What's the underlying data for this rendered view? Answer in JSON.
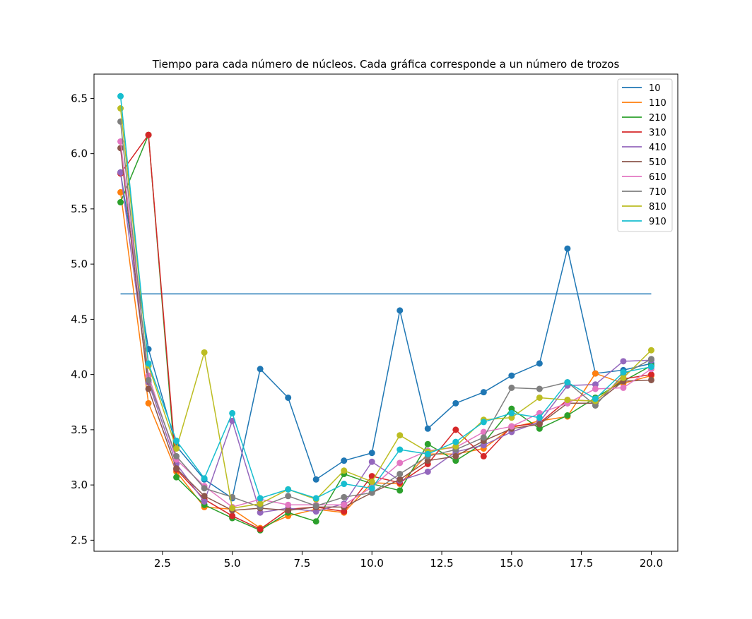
{
  "chart_data": {
    "type": "line",
    "title": "Tiempo para cada número de núcleos. Cada gráfica corresponde a un número de trozos",
    "xlabel": "",
    "ylabel": "",
    "xlim": [
      0.05,
      20.95
    ],
    "ylim": [
      2.4,
      6.72
    ],
    "xticks": [
      2.5,
      5.0,
      7.5,
      10.0,
      12.5,
      15.0,
      17.5,
      20.0
    ],
    "xtick_labels": [
      "2.5",
      "5.0",
      "7.5",
      "10.0",
      "12.5",
      "15.0",
      "17.5",
      "20.0"
    ],
    "yticks": [
      2.5,
      3.0,
      3.5,
      4.0,
      4.5,
      5.0,
      5.5,
      6.0,
      6.5
    ],
    "ytick_labels": [
      "2.5",
      "3.0",
      "3.5",
      "4.0",
      "4.5",
      "5.0",
      "5.5",
      "6.0",
      "6.5"
    ],
    "grid": false,
    "legend_position": "top-right",
    "x": [
      1,
      2,
      3,
      4,
      5,
      6,
      7,
      8,
      9,
      10,
      11,
      12,
      13,
      14,
      15,
      16,
      17,
      18,
      19,
      20
    ],
    "reference_line": {
      "series": "10",
      "y": 4.73,
      "x_range": [
        1,
        20
      ]
    },
    "series": [
      {
        "name": "10",
        "color": "#1f77b4",
        "values": [
          5.83,
          4.23,
          3.35,
          3.05,
          2.88,
          4.05,
          3.79,
          3.05,
          3.22,
          3.29,
          4.58,
          3.51,
          3.74,
          3.84,
          3.99,
          4.1,
          5.14,
          4.01,
          4.04,
          4.1
        ]
      },
      {
        "name": "110",
        "color": "#ff7f0e",
        "values": [
          5.65,
          3.74,
          3.12,
          2.8,
          2.78,
          2.61,
          2.72,
          2.78,
          2.75,
          3.02,
          3.01,
          3.28,
          3.28,
          3.33,
          3.52,
          3.58,
          3.62,
          4.01,
          3.92,
          3.99
        ]
      },
      {
        "name": "210",
        "color": "#2ca02c",
        "values": [
          5.56,
          6.17,
          3.07,
          2.82,
          2.7,
          2.59,
          2.75,
          2.67,
          3.1,
          3.01,
          2.95,
          3.37,
          3.22,
          3.38,
          3.69,
          3.51,
          3.63,
          3.79,
          3.94,
          4.08
        ]
      },
      {
        "name": "310",
        "color": "#d62728",
        "values": [
          5.82,
          6.17,
          3.14,
          2.87,
          2.72,
          2.6,
          2.78,
          2.8,
          2.76,
          3.08,
          3.02,
          3.19,
          3.5,
          3.26,
          3.53,
          3.56,
          3.77,
          3.76,
          3.96,
          4.0
        ]
      },
      {
        "name": "410",
        "color": "#9467bd",
        "values": [
          5.83,
          3.93,
          3.19,
          2.85,
          3.58,
          2.75,
          2.79,
          2.76,
          2.83,
          3.21,
          3.04,
          3.12,
          3.3,
          3.36,
          3.48,
          3.57,
          3.9,
          3.91,
          4.12,
          4.13
        ]
      },
      {
        "name": "510",
        "color": "#8c564b",
        "values": [
          6.05,
          3.87,
          3.15,
          2.9,
          2.77,
          2.79,
          2.77,
          2.8,
          2.8,
          2.93,
          3.05,
          3.22,
          3.26,
          3.4,
          3.51,
          3.55,
          3.74,
          3.74,
          3.94,
          3.95
        ]
      },
      {
        "name": "610",
        "color": "#e377c2",
        "values": [
          6.11,
          3.99,
          3.23,
          2.99,
          2.8,
          2.87,
          2.82,
          2.82,
          2.82,
          2.98,
          3.2,
          3.31,
          3.34,
          3.48,
          3.53,
          3.65,
          3.74,
          3.87,
          3.88,
          4.05
        ]
      },
      {
        "name": "710",
        "color": "#7f7f7f",
        "values": [
          6.29,
          3.95,
          3.26,
          2.97,
          2.89,
          2.8,
          2.9,
          2.81,
          2.89,
          2.93,
          3.1,
          3.26,
          3.32,
          3.43,
          3.88,
          3.87,
          3.93,
          3.72,
          4.0,
          4.14
        ]
      },
      {
        "name": "810",
        "color": "#bcbd22",
        "values": [
          6.41,
          4.08,
          3.33,
          4.2,
          2.79,
          2.83,
          2.96,
          2.87,
          3.13,
          3.03,
          3.45,
          3.3,
          3.35,
          3.59,
          3.61,
          3.79,
          3.77,
          3.76,
          3.97,
          4.22
        ]
      },
      {
        "name": "910",
        "color": "#17becf",
        "values": [
          6.52,
          4.1,
          3.4,
          3.06,
          3.65,
          2.88,
          2.96,
          2.88,
          3.01,
          2.97,
          3.32,
          3.28,
          3.39,
          3.57,
          3.65,
          3.61,
          3.93,
          3.78,
          4.02,
          4.07
        ]
      }
    ]
  }
}
